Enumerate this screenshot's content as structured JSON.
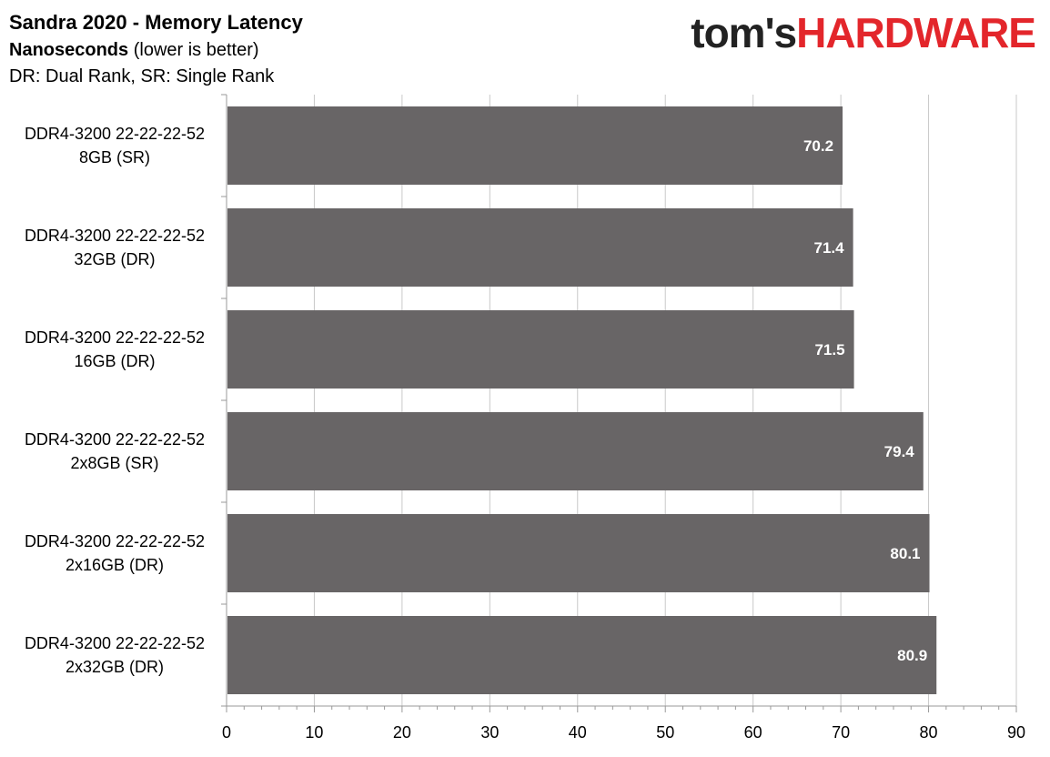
{
  "header": {
    "title": "Sandra 2020 - Memory Latency",
    "subtitle_bold": "Nanoseconds",
    "subtitle_rest": "(lower is better)",
    "note": "DR: Dual Rank, SR: Single Rank"
  },
  "logo": {
    "part1": "tom's",
    "part2": "HARDWARE",
    "color1": "#222222",
    "color2": "#e3262b"
  },
  "chart_data": {
    "type": "bar",
    "orientation": "horizontal",
    "title": "Sandra 2020 - Memory Latency",
    "xlabel": "Nanoseconds (lower is better)",
    "categories": [
      [
        "DDR4-3200 22-22-22-52",
        "8GB (SR)"
      ],
      [
        "DDR4-3200 22-22-22-52",
        "32GB (DR)"
      ],
      [
        "DDR4-3200 22-22-22-52",
        "16GB (DR)"
      ],
      [
        "DDR4-3200 22-22-22-52",
        "2x8GB (SR)"
      ],
      [
        "DDR4-3200 22-22-22-52",
        "2x16GB (DR)"
      ],
      [
        "DDR4-3200 22-22-22-52",
        "2x32GB (DR)"
      ]
    ],
    "values": [
      70.2,
      71.4,
      71.5,
      79.4,
      80.1,
      80.9
    ],
    "value_labels": [
      "70.2",
      "71.4",
      "71.5",
      "79.4",
      "80.1",
      "80.9"
    ],
    "xlim": [
      0,
      90
    ],
    "ticks": [
      0,
      10,
      20,
      30,
      40,
      50,
      60,
      70,
      80,
      90
    ],
    "grid": true,
    "bar_color": "#686566",
    "grid_color": "#c8c8c8"
  }
}
